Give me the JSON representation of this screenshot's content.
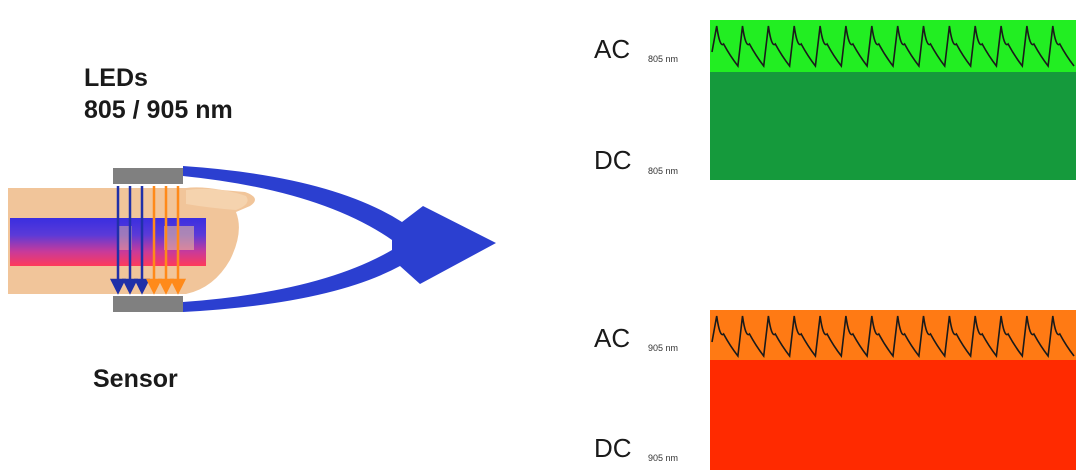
{
  "labels": {
    "leds_title": "LEDs",
    "leds_wavelengths": "805 / 905 nm",
    "sensor": "Sensor"
  },
  "channels": [
    {
      "ac_label": "AC",
      "ac_unit": "805 nm",
      "dc_label": "DC",
      "dc_unit": "805 nm",
      "ac_color": "#22ee22",
      "dc_color": "#159a3c"
    },
    {
      "ac_label": "AC",
      "ac_unit": "905 nm",
      "dc_label": "DC",
      "dc_unit": "905 nm",
      "ac_color": "#ff7a14",
      "dc_color": "#ff2a00"
    }
  ],
  "colors": {
    "flow_arrow": "#2b3fd0",
    "finger": "#f1c59a",
    "probe": "#808080",
    "light_805": "#2030a8",
    "light_905": "#ff8a1a",
    "waveform": "#1a1a1a"
  },
  "pulse_count": 14
}
